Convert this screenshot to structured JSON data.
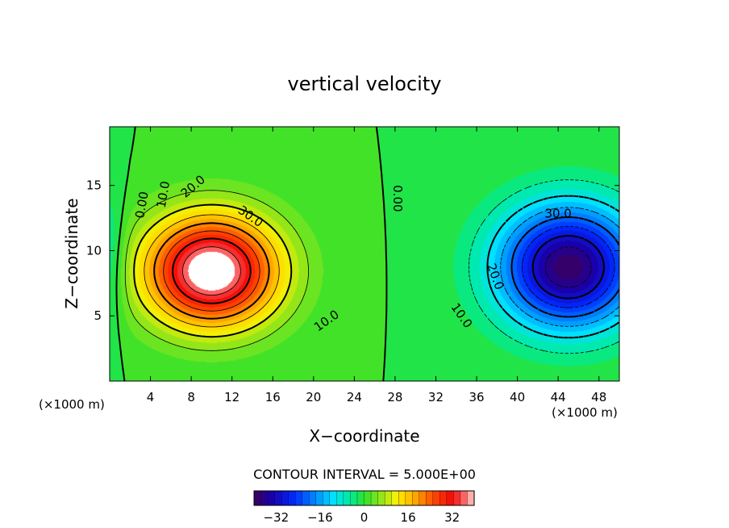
{
  "chart_data": {
    "type": "contour",
    "title": "vertical velocity",
    "xlabel": "X−coordinate",
    "ylabel": "Z−coordinate",
    "x_unit_left": "(×1000 m)",
    "x_unit_right": "(×1000 m)",
    "xlim": [
      0,
      50
    ],
    "ylim": [
      0,
      19.5
    ],
    "x_ticks": [
      4,
      8,
      12,
      16,
      20,
      24,
      28,
      32,
      36,
      40,
      44,
      48
    ],
    "x_tick_labels": [
      "4",
      "8",
      "12",
      "16",
      "20",
      "24",
      "28",
      "32",
      "36",
      "40",
      "44",
      "48"
    ],
    "y_ticks": [
      5,
      10,
      15
    ],
    "y_tick_labels": [
      "5",
      "10",
      "15"
    ],
    "contour_interval_text": "CONTOUR INTERVAL = 5.000E+00",
    "contour_interval": 5,
    "updraft": {
      "center_x": 10,
      "center_z": 8.2,
      "max": 40
    },
    "downdraft": {
      "center_x": 45,
      "center_z": 8.5,
      "min": -38
    },
    "zero_line_x": 27.5,
    "contour_labels": [
      {
        "text": "0.00",
        "x": 3.2,
        "z": 13.5,
        "rotate": -80
      },
      {
        "text": "10.0",
        "x": 5.3,
        "z": 14.3,
        "rotate": -80
      },
      {
        "text": "20.0",
        "x": 8.2,
        "z": 14.9,
        "rotate": -40
      },
      {
        "text": "30.0",
        "x": 13.8,
        "z": 12.6,
        "rotate": 35
      },
      {
        "text": "10.0",
        "x": 21.3,
        "z": 4.6,
        "rotate": -35
      },
      {
        "text": "0.00",
        "x": 28.2,
        "z": 14.0,
        "rotate": 90
      },
      {
        "text": "30.0",
        "x": 44.0,
        "z": 12.8,
        "rotate": 0
      },
      {
        "text": "20.0",
        "x": 37.8,
        "z": 8.0,
        "rotate": 70
      },
      {
        "text": "10.0",
        "x": 34.5,
        "z": 5.0,
        "rotate": 55
      }
    ],
    "colorbar": {
      "range": [
        -40,
        40
      ],
      "ticks": [
        -32,
        -16,
        0,
        16,
        32
      ],
      "tick_labels": [
        "−32",
        "−16",
        "0",
        "16",
        "32"
      ]
    },
    "grid": false,
    "legend": "none"
  }
}
